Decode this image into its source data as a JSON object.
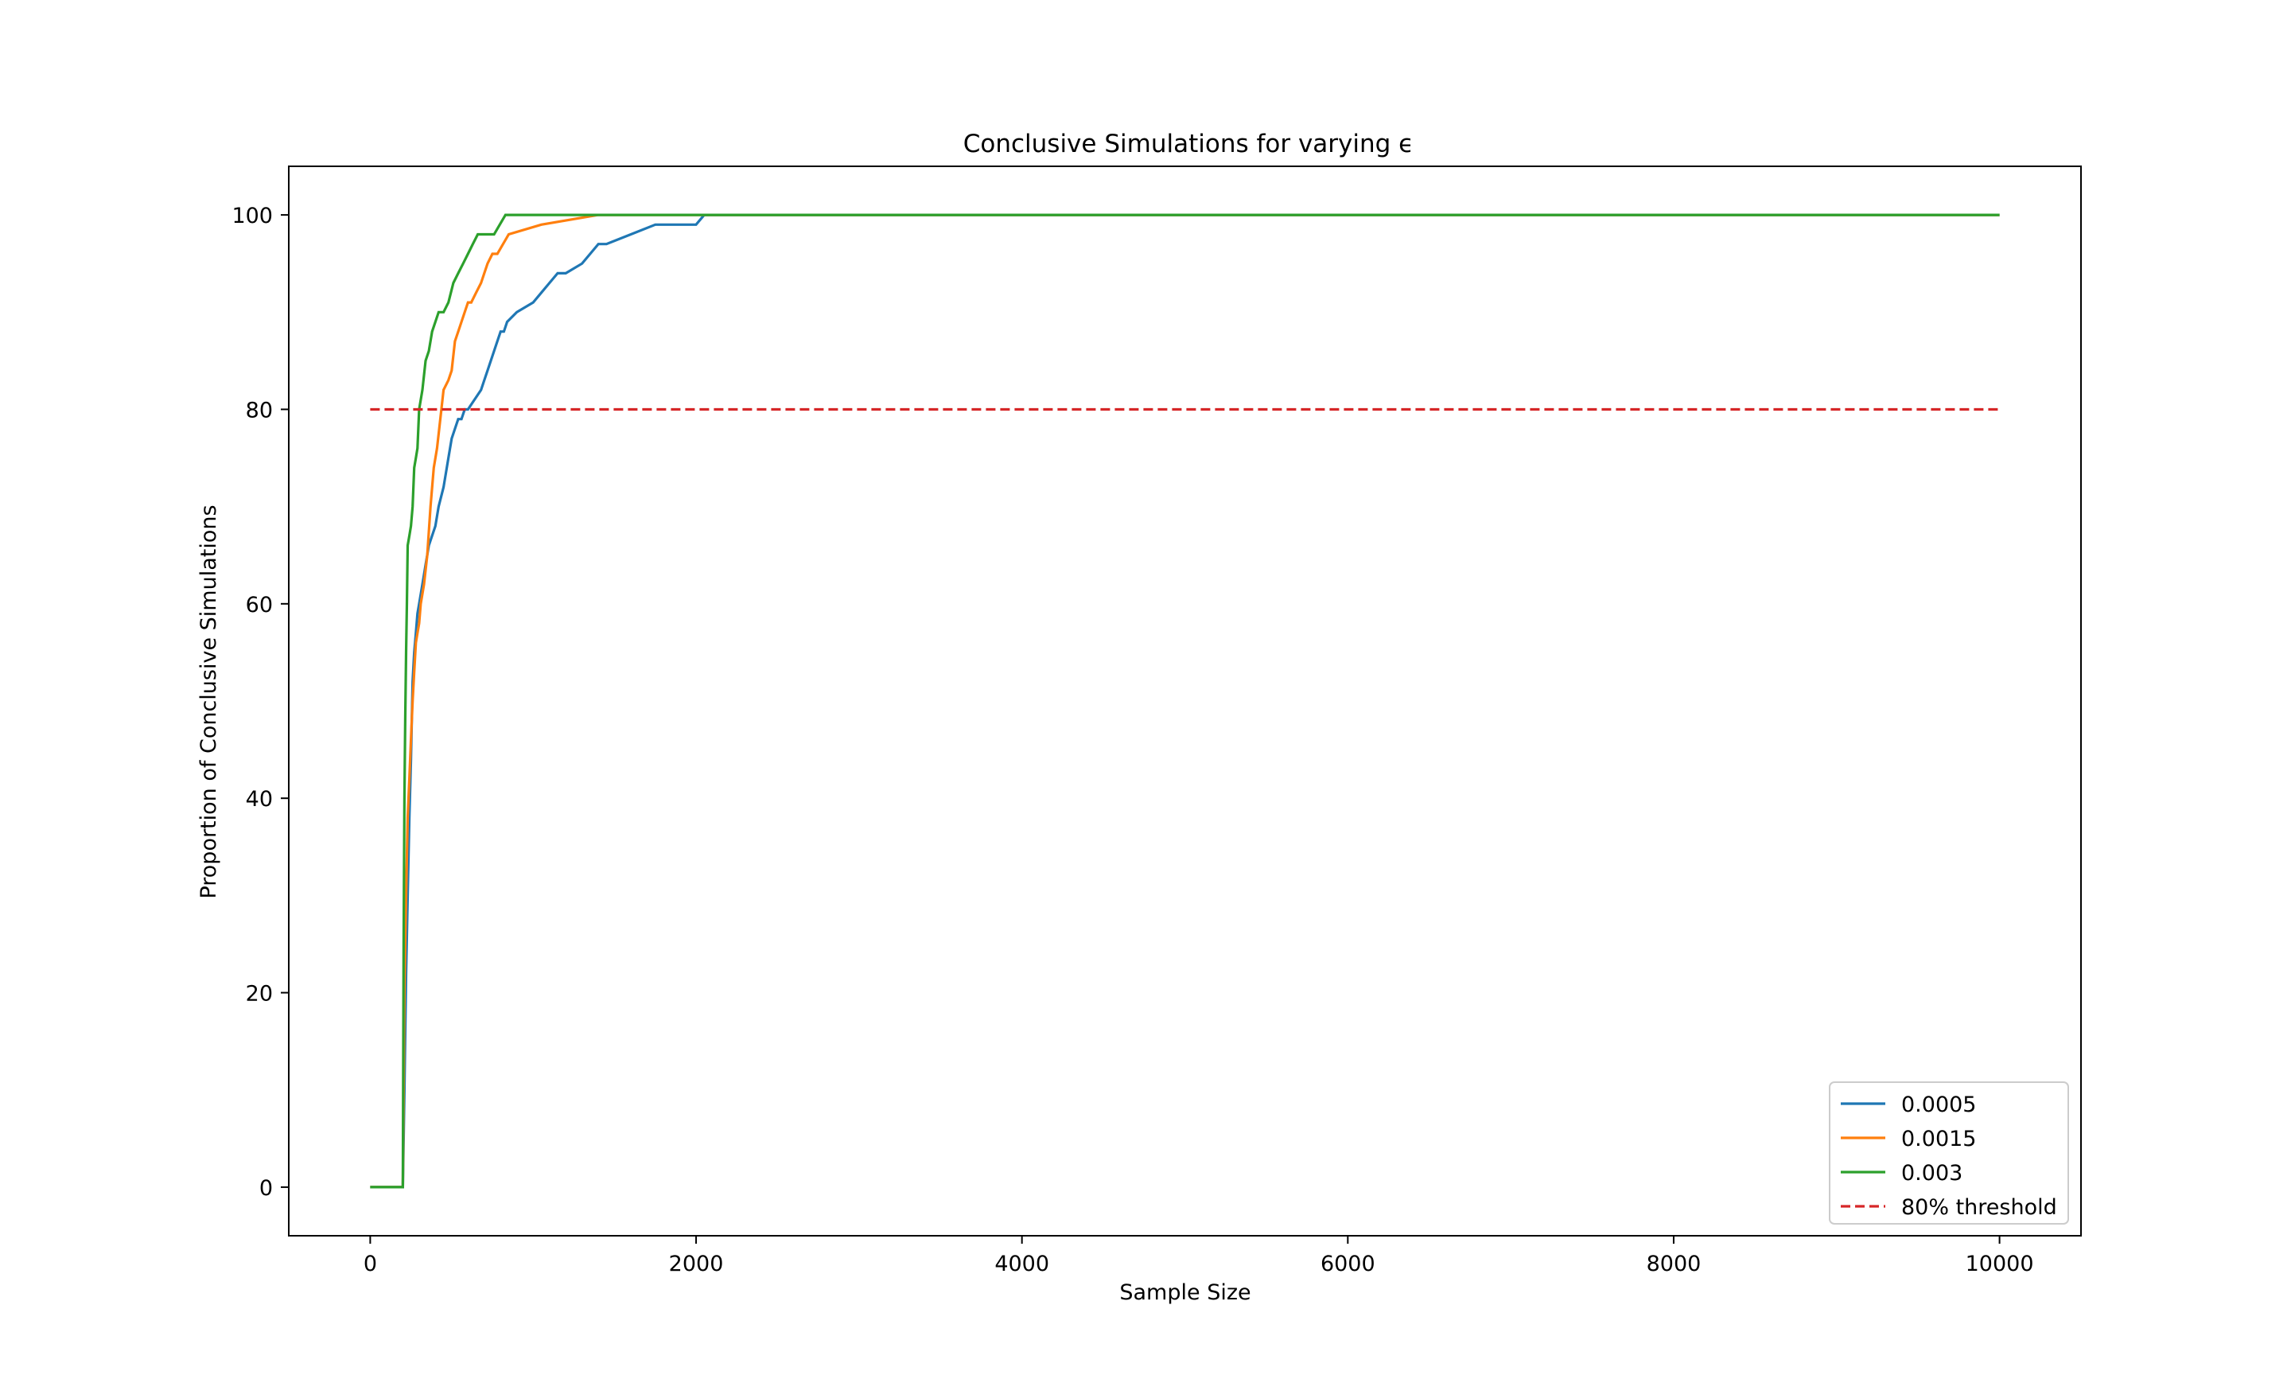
{
  "chart_data": {
    "type": "line",
    "title": "Conclusive Simulations for varying ϵ",
    "xlabel": "Sample Size",
    "ylabel": "Proportion of Conclusive Simulations",
    "xlim": [
      -500,
      10500
    ],
    "ylim": [
      -5,
      105
    ],
    "xticks": [
      0,
      2000,
      4000,
      6000,
      8000,
      10000
    ],
    "xtick_labels": [
      "0",
      "2000",
      "4000",
      "6000",
      "8000",
      "10000"
    ],
    "yticks": [
      0,
      20,
      40,
      60,
      80,
      100
    ],
    "ytick_labels": [
      "0",
      "20",
      "40",
      "60",
      "80",
      "100"
    ],
    "grid": false,
    "legend_position": "lower-right",
    "series": [
      {
        "name": "0.0005",
        "color": "#1f77b4",
        "style": "solid",
        "x": [
          0,
          200,
          210,
          220,
          230,
          240,
          250,
          260,
          270,
          280,
          290,
          300,
          320,
          340,
          360,
          380,
          400,
          420,
          450,
          480,
          500,
          520,
          540,
          560,
          580,
          600,
          640,
          680,
          700,
          720,
          740,
          760,
          780,
          800,
          820,
          840,
          900,
          1000,
          1050,
          1100,
          1150,
          1200,
          1300,
          1350,
          1400,
          1450,
          1600,
          1750,
          2000,
          2050,
          10000
        ],
        "y": [
          0,
          0,
          10,
          22,
          30,
          38,
          44,
          52,
          55,
          57,
          59,
          60,
          62,
          64,
          66,
          67,
          68,
          70,
          72,
          75,
          77,
          78,
          79,
          79,
          80,
          80,
          81,
          82,
          83,
          84,
          85,
          86,
          87,
          88,
          88,
          89,
          90,
          91,
          92,
          93,
          94,
          94,
          95,
          96,
          97,
          97,
          98,
          99,
          99,
          100,
          100
        ]
      },
      {
        "name": "0.0015",
        "color": "#ff7f0e",
        "style": "solid",
        "x": [
          0,
          200,
          210,
          220,
          230,
          240,
          250,
          260,
          270,
          280,
          290,
          300,
          310,
          330,
          350,
          370,
          390,
          410,
          430,
          450,
          480,
          500,
          520,
          540,
          560,
          580,
          600,
          620,
          650,
          680,
          700,
          720,
          750,
          780,
          850,
          1050,
          1400,
          10000
        ],
        "y": [
          0,
          0,
          20,
          30,
          38,
          42,
          46,
          50,
          53,
          56,
          57,
          58,
          60,
          62,
          65,
          70,
          74,
          76,
          79,
          82,
          83,
          84,
          87,
          88,
          89,
          90,
          91,
          91,
          92,
          93,
          94,
          95,
          96,
          96,
          98,
          99,
          100,
          100
        ]
      },
      {
        "name": "0.003",
        "color": "#2ca02c",
        "style": "solid",
        "x": [
          0,
          200,
          205,
          210,
          215,
          220,
          225,
          230,
          240,
          250,
          260,
          270,
          280,
          290,
          300,
          320,
          340,
          360,
          380,
          400,
          420,
          450,
          480,
          510,
          540,
          570,
          600,
          630,
          660,
          700,
          760,
          830,
          10000
        ],
        "y": [
          0,
          0,
          25,
          40,
          48,
          55,
          60,
          66,
          67,
          68,
          70,
          74,
          75,
          76,
          80,
          82,
          85,
          86,
          88,
          89,
          90,
          90,
          91,
          93,
          94,
          95,
          96,
          97,
          98,
          98,
          98,
          100,
          100
        ]
      },
      {
        "name": "80% threshold",
        "color": "#d62728",
        "style": "dashed",
        "x": [
          0,
          10000
        ],
        "y": [
          80,
          80
        ]
      }
    ]
  }
}
